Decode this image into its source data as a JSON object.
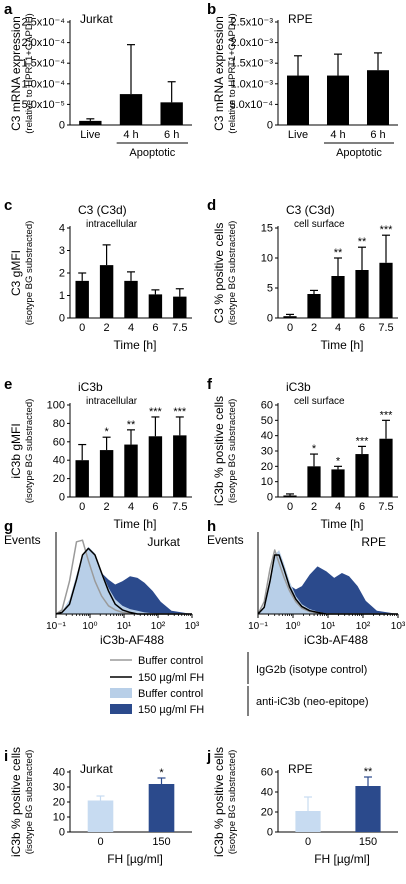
{
  "colors": {
    "bar": "#000000",
    "buffer_fill": "#b8cfe8",
    "fh_fill": "#2b4a8c",
    "buffer_control_line": "#9a9a9a",
    "fh_line": "#000000",
    "i_buffer_bar": "#c7dbf1",
    "i_fh_bar": "#2b4a8c"
  },
  "legend": {
    "buffer_control_line": "Buffer control",
    "fh_line": "150 µg/ml FH",
    "group_isotype": "IgG2b (isotype control)",
    "buffer_control_fill": "Buffer control",
    "fh_fill": "150 µg/ml FH",
    "group_neo": "anti-iC3b (neo-epitope)"
  },
  "chart_data": [
    {
      "panel": "a",
      "type": "bar",
      "title": "Jurkat",
      "ylabel": [
        "C3 mRNA expression",
        "(relative to HPRT1+GAPDH)"
      ],
      "categories": [
        "Live",
        "4 h",
        "6 h"
      ],
      "group_label": "Apoptotic",
      "ylim": [
        0,
        0.00025
      ],
      "yticks": [
        0,
        5e-05,
        0.0001,
        0.00015,
        0.0002,
        0.00025
      ],
      "ytick_labels": [
        "0",
        "5.0x10⁻⁵",
        "1.0x10⁻⁴",
        "1.5x10⁻⁴",
        "2.0x10⁻⁴",
        "2.5x10⁻⁴"
      ],
      "values": [
        1e-05,
        7.5e-05,
        5.5e-05
      ],
      "errors": [
        5e-06,
        0.00012,
        5e-05
      ],
      "stars": [
        "",
        "",
        ""
      ]
    },
    {
      "panel": "b",
      "type": "bar",
      "title": "RPE",
      "ylabel": [
        "C3 mRNA expression",
        "(relative to HPRT1+GAPDH)"
      ],
      "categories": [
        "Live",
        "4 h",
        "6 h"
      ],
      "group_label": "Apoptotic",
      "ylim": [
        0,
        0.0025
      ],
      "yticks": [
        0,
        0.0005,
        0.001,
        0.0015,
        0.002,
        0.0025
      ],
      "ytick_labels": [
        "0",
        "5.0x10⁻⁴",
        "1.0x10⁻³",
        "1.5x10⁻³",
        "2.0x10⁻³",
        "2.5x10⁻³"
      ],
      "values": [
        0.0012,
        0.0012,
        0.00133
      ],
      "errors": [
        0.00048,
        0.00052,
        0.00042
      ],
      "stars": [
        "",
        "",
        ""
      ]
    },
    {
      "panel": "c",
      "type": "bar",
      "title": "C3 (C3d)",
      "subtitle": "intracellular",
      "ylabel": [
        "C3 gMFI",
        "(isotype BG substracted)"
      ],
      "xlabel": "Time [h]",
      "categories": [
        "0",
        "2",
        "4",
        "6",
        "7.5"
      ],
      "ylim": [
        0,
        4
      ],
      "yticks": [
        0,
        1,
        2,
        3,
        4
      ],
      "ytick_labels": [
        "0",
        "1",
        "2",
        "3",
        "4"
      ],
      "values": [
        1.65,
        2.35,
        1.65,
        1.05,
        0.95
      ],
      "errors": [
        0.35,
        0.9,
        0.4,
        0.2,
        0.35
      ],
      "stars": [
        "",
        "",
        "",
        "",
        ""
      ]
    },
    {
      "panel": "d",
      "type": "bar",
      "title": "C3 (C3d)",
      "subtitle": "cell surface",
      "ylabel": [
        "C3 % positive cells",
        "(isotype BG substracted)"
      ],
      "xlabel": "Time [h]",
      "categories": [
        "0",
        "2",
        "4",
        "6",
        "7.5"
      ],
      "ylim": [
        0,
        15
      ],
      "yticks": [
        0,
        5,
        10,
        15
      ],
      "ytick_labels": [
        "0",
        "5",
        "10",
        "15"
      ],
      "values": [
        0.3,
        4.0,
        7.0,
        8.0,
        9.2
      ],
      "errors": [
        0.3,
        0.6,
        3.0,
        3.8,
        4.6
      ],
      "stars": [
        "",
        "",
        "**",
        "**",
        "***"
      ]
    },
    {
      "panel": "e",
      "type": "bar",
      "title": "iC3b",
      "subtitle": "intracellular",
      "ylabel": [
        "iC3b gMFI",
        "(isotype BG substracted)"
      ],
      "xlabel": "Time [h]",
      "categories": [
        "0",
        "2",
        "4",
        "6",
        "7.5"
      ],
      "ylim": [
        0,
        100
      ],
      "yticks": [
        0,
        20,
        40,
        60,
        80,
        100
      ],
      "ytick_labels": [
        "0",
        "20",
        "40",
        "60",
        "80",
        "100"
      ],
      "values": [
        40,
        51,
        57,
        66,
        67
      ],
      "errors": [
        17,
        14,
        16,
        21,
        20
      ],
      "stars": [
        "",
        "*",
        "**",
        "***",
        "***"
      ]
    },
    {
      "panel": "f",
      "type": "bar",
      "title": "iC3b",
      "subtitle": "cell surface",
      "ylabel": [
        "iC3b % positive cells",
        "(isotype BG substracted)"
      ],
      "xlabel": "Time [h]",
      "categories": [
        "0",
        "2",
        "4",
        "6",
        "7.5"
      ],
      "ylim": [
        0,
        60
      ],
      "yticks": [
        0,
        10,
        20,
        30,
        40,
        50,
        60
      ],
      "ytick_labels": [
        "0",
        "10",
        "20",
        "30",
        "40",
        "50",
        "60"
      ],
      "values": [
        1,
        20,
        18,
        28,
        38
      ],
      "errors": [
        1,
        8,
        2,
        5,
        12
      ],
      "stars": [
        "",
        "*",
        "*",
        "***",
        "***"
      ]
    },
    {
      "panel": "g",
      "type": "histogram",
      "title": "Jurkat",
      "ylabel": "Events",
      "xlabel": "iC3b-AF488",
      "xscale": "log",
      "xlim": [
        0.1,
        1000
      ],
      "xtick_labels": [
        "10⁻¹",
        "10⁰",
        "10¹",
        "10²",
        "10³"
      ],
      "series": [
        {
          "name": "Buffer control",
          "role": "buffer_fill",
          "x": [
            0.1,
            0.15,
            0.25,
            0.4,
            0.6,
            0.9,
            1.4,
            2.2,
            3.5,
            5.5,
            9,
            15,
            25,
            40,
            70,
            120,
            250,
            1000
          ],
          "y": [
            0,
            0.03,
            0.18,
            0.48,
            0.72,
            0.82,
            0.74,
            0.52,
            0.32,
            0.18,
            0.1,
            0.06,
            0.04,
            0.02,
            0.01,
            0,
            0,
            0
          ]
        },
        {
          "name": "150 µg/ml FH",
          "role": "fh_fill",
          "x": [
            0.1,
            0.15,
            0.25,
            0.4,
            0.6,
            0.9,
            1.4,
            2.2,
            3.5,
            5.5,
            9,
            15,
            25,
            40,
            70,
            120,
            250,
            1000
          ],
          "y": [
            0,
            0.02,
            0.1,
            0.28,
            0.5,
            0.62,
            0.6,
            0.5,
            0.42,
            0.36,
            0.4,
            0.46,
            0.44,
            0.38,
            0.28,
            0.15,
            0.04,
            0
          ]
        },
        {
          "name": "Buffer control",
          "role": "buffer_control_line",
          "x": [
            0.1,
            0.15,
            0.25,
            0.4,
            0.6,
            0.9,
            1.4,
            2.2,
            3.5,
            5.5,
            9,
            15,
            25,
            1000
          ],
          "y": [
            0,
            0.05,
            0.4,
            0.88,
            0.9,
            0.65,
            0.4,
            0.22,
            0.1,
            0.05,
            0.02,
            0.01,
            0,
            0
          ]
        },
        {
          "name": "150 µg/ml FH",
          "role": "fh_line",
          "x": [
            0.1,
            0.15,
            0.25,
            0.4,
            0.6,
            0.9,
            1.4,
            2.2,
            3.5,
            5.5,
            9,
            15,
            25,
            1000
          ],
          "y": [
            0,
            0.02,
            0.12,
            0.42,
            0.72,
            0.8,
            0.72,
            0.5,
            0.28,
            0.12,
            0.05,
            0.02,
            0,
            0
          ]
        }
      ]
    },
    {
      "panel": "h",
      "type": "histogram",
      "title": "RPE",
      "ylabel": "Events",
      "xlabel": "iC3b-AF488",
      "xscale": "log",
      "xlim": [
        0.1,
        1000
      ],
      "xtick_labels": [
        "10⁻¹",
        "10⁰",
        "10¹",
        "10²",
        "10³"
      ],
      "series": [
        {
          "name": "Buffer control",
          "role": "buffer_fill",
          "x": [
            0.1,
            0.15,
            0.22,
            0.3,
            0.4,
            0.55,
            0.8,
            1.2,
            1.8,
            3,
            5,
            9,
            20,
            1000
          ],
          "y": [
            0,
            0.1,
            0.45,
            0.72,
            0.78,
            0.62,
            0.4,
            0.22,
            0.12,
            0.06,
            0.03,
            0.01,
            0,
            0
          ]
        },
        {
          "name": "150 µg/ml FH",
          "role": "fh_fill",
          "x": [
            0.1,
            0.15,
            0.22,
            0.3,
            0.4,
            0.55,
            0.8,
            1.2,
            1.8,
            3,
            5,
            9,
            15,
            25,
            40,
            70,
            120,
            250,
            1000
          ],
          "y": [
            0,
            0.05,
            0.25,
            0.42,
            0.5,
            0.45,
            0.35,
            0.3,
            0.34,
            0.48,
            0.58,
            0.52,
            0.44,
            0.5,
            0.46,
            0.34,
            0.16,
            0.04,
            0
          ]
        },
        {
          "name": "Buffer control",
          "role": "buffer_control_line",
          "x": [
            0.1,
            0.15,
            0.22,
            0.3,
            0.4,
            0.55,
            0.8,
            1.2,
            1.8,
            3,
            5,
            9,
            1000
          ],
          "y": [
            0,
            0.15,
            0.55,
            0.78,
            0.62,
            0.45,
            0.28,
            0.15,
            0.07,
            0.03,
            0.01,
            0,
            0
          ]
        },
        {
          "name": "150 µg/ml FH",
          "role": "fh_line",
          "x": [
            0.1,
            0.15,
            0.22,
            0.3,
            0.4,
            0.55,
            0.8,
            1.2,
            1.8,
            3,
            5,
            9,
            1000
          ],
          "y": [
            0,
            0.08,
            0.4,
            0.72,
            0.72,
            0.55,
            0.33,
            0.18,
            0.09,
            0.04,
            0.02,
            0,
            0
          ]
        }
      ]
    },
    {
      "panel": "i",
      "type": "bar",
      "title": "Jurkat",
      "ylabel": [
        "iC3b % positive cells",
        "(isotype BG substracted)"
      ],
      "xlabel": "FH [µg/ml]",
      "categories": [
        "0",
        "150"
      ],
      "ylim": [
        0,
        40
      ],
      "yticks": [
        0,
        10,
        20,
        30,
        40
      ],
      "ytick_labels": [
        "0",
        "10",
        "20",
        "30",
        "40"
      ],
      "values": [
        21,
        32
      ],
      "errors": [
        3,
        4
      ],
      "stars": [
        "",
        "*"
      ]
    },
    {
      "panel": "j",
      "type": "bar",
      "title": "RPE",
      "ylabel": [
        "iC3b % positive cells",
        "(isotype BG substracted)"
      ],
      "xlabel": "FH [µg/ml]",
      "categories": [
        "0",
        "150"
      ],
      "ylim": [
        0,
        60
      ],
      "yticks": [
        0,
        20,
        40,
        60
      ],
      "ytick_labels": [
        "0",
        "20",
        "40",
        "60"
      ],
      "values": [
        21,
        46
      ],
      "errors": [
        14,
        9
      ],
      "stars": [
        "",
        "**"
      ]
    }
  ]
}
